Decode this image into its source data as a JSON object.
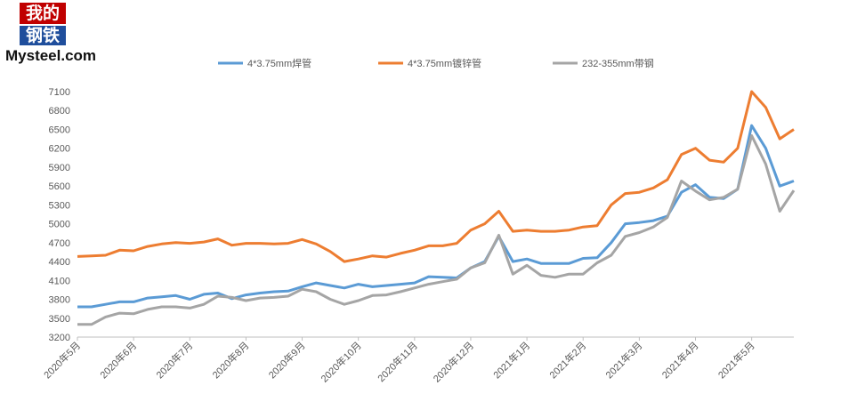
{
  "logo": {
    "line1": "我的",
    "line2": "钢铁",
    "brand": "Mysteel.com"
  },
  "chart_data": {
    "type": "line",
    "categories": [
      "2020年5月",
      null,
      null,
      null,
      "2020年6月",
      null,
      null,
      null,
      "2020年7月",
      null,
      null,
      null,
      "2020年8月",
      null,
      null,
      null,
      "2020年9月",
      null,
      null,
      null,
      "2020年10月",
      null,
      null,
      null,
      "2020年11月",
      null,
      null,
      null,
      "2020年12月",
      null,
      null,
      null,
      "2021年1月",
      null,
      null,
      null,
      "2021年2月",
      null,
      null,
      null,
      "2021年3月",
      null,
      null,
      null,
      "2021年4月",
      null,
      null,
      null,
      "2021年5月",
      null,
      null,
      null
    ],
    "series": [
      {
        "name": "4*3.75mm焊管",
        "color": "#5b9bd5",
        "values": [
          3680,
          3680,
          3720,
          3760,
          3760,
          3820,
          3840,
          3860,
          3800,
          3880,
          3900,
          3810,
          3870,
          3900,
          3920,
          3930,
          4000,
          4060,
          4020,
          3980,
          4040,
          4000,
          4020,
          4040,
          4060,
          4160,
          4150,
          4140,
          4300,
          4400,
          4800,
          4400,
          4440,
          4370,
          4370,
          4370,
          4450,
          4460,
          4700,
          5000,
          5020,
          5050,
          5120,
          5500,
          5620,
          5420,
          5400,
          5550,
          6560,
          6200,
          5600,
          5680
        ]
      },
      {
        "name": "4*3.75mm镀锌管",
        "color": "#ed7d31",
        "values": [
          4480,
          4490,
          4500,
          4580,
          4570,
          4640,
          4680,
          4700,
          4690,
          4710,
          4760,
          4660,
          4690,
          4690,
          4680,
          4690,
          4750,
          4680,
          4560,
          4400,
          4440,
          4490,
          4470,
          4530,
          4580,
          4650,
          4650,
          4690,
          4900,
          5000,
          5200,
          4880,
          4900,
          4880,
          4880,
          4900,
          4950,
          4970,
          5300,
          5480,
          5500,
          5570,
          5700,
          6100,
          6200,
          6010,
          5980,
          6200,
          7100,
          6850,
          6350,
          6500
        ]
      },
      {
        "name": "232-355mm带钢",
        "color": "#a5a5a5",
        "values": [
          3400,
          3400,
          3520,
          3580,
          3570,
          3640,
          3680,
          3680,
          3660,
          3720,
          3850,
          3830,
          3780,
          3820,
          3830,
          3850,
          3960,
          3920,
          3800,
          3720,
          3780,
          3860,
          3870,
          3920,
          3980,
          4040,
          4080,
          4120,
          4300,
          4380,
          4820,
          4200,
          4340,
          4180,
          4150,
          4200,
          4200,
          4380,
          4500,
          4800,
          4860,
          4950,
          5100,
          5680,
          5520,
          5380,
          5420,
          5550,
          6400,
          5950,
          5200,
          5530
        ]
      }
    ],
    "ylim": [
      3200,
      7100
    ],
    "yticks": [
      3200,
      3500,
      3800,
      4100,
      4400,
      4700,
      5000,
      5300,
      5600,
      5900,
      6200,
      6500,
      6800,
      7100
    ],
    "legend": "top"
  }
}
